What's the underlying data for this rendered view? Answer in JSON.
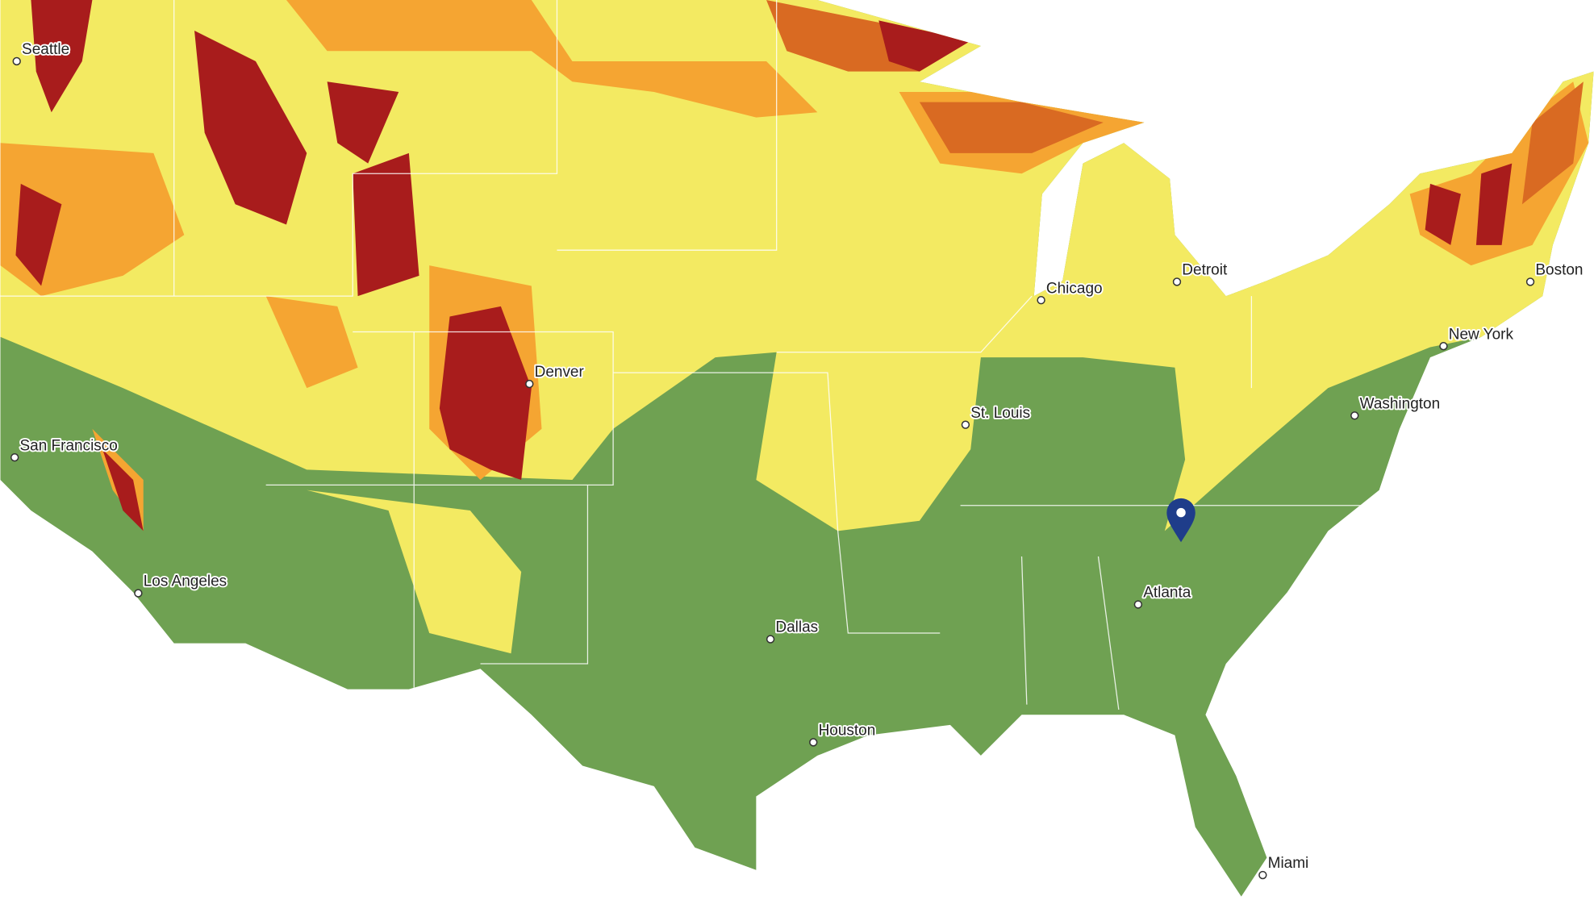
{
  "cities": [
    {
      "label": "Seattle"
    },
    {
      "label": "San Francisco"
    },
    {
      "label": "Los Angeles"
    },
    {
      "label": "Denver"
    },
    {
      "label": "Dallas"
    },
    {
      "label": "Houston"
    },
    {
      "label": "St. Louis"
    },
    {
      "label": "Chicago"
    },
    {
      "label": "Detroit"
    },
    {
      "label": "Atlanta"
    },
    {
      "label": "Miami"
    },
    {
      "label": "Washington"
    },
    {
      "label": "New York"
    },
    {
      "label": "Boston"
    }
  ]
}
